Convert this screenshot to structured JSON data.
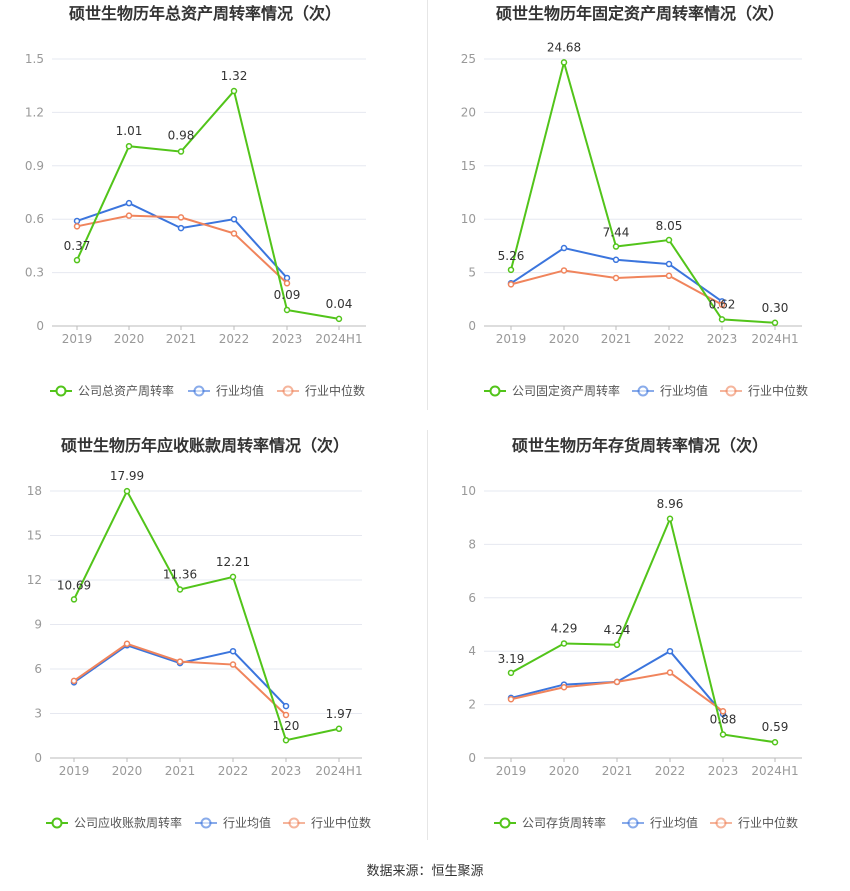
{
  "colors": {
    "company": "#52c41a",
    "industry_avg": "#3b75dd",
    "industry_median": "#f0845c",
    "grid": "#e6e8f0",
    "axis": "#999999",
    "title": "#333333"
  },
  "chart_data": [
    {
      "type": "line",
      "title": "硕世生物历年总资产周转率情况（次）",
      "categories": [
        "2019",
        "2020",
        "2021",
        "2022",
        "2023",
        "2024H1"
      ],
      "ylim": [
        0,
        1.5
      ],
      "yticks": [
        "0",
        "0.3",
        "0.6",
        "0.9",
        "1.2",
        "1.5"
      ],
      "series": [
        {
          "name": "公司总资产周转率",
          "values": [
            0.37,
            1.01,
            0.98,
            1.32,
            0.09,
            0.04
          ],
          "labels": [
            "0.37",
            "1.01",
            "0.98",
            "1.32",
            "0.09",
            "0.04"
          ]
        },
        {
          "name": "行业均值",
          "values": [
            0.59,
            0.69,
            0.55,
            0.6,
            0.27,
            null
          ]
        },
        {
          "name": "行业中位数",
          "values": [
            0.56,
            0.62,
            0.61,
            0.52,
            0.24,
            null
          ]
        }
      ]
    },
    {
      "type": "line",
      "title": "硕世生物历年固定资产周转率情况（次）",
      "categories": [
        "2019",
        "2020",
        "2021",
        "2022",
        "2023",
        "2024H1"
      ],
      "ylim": [
        0,
        25
      ],
      "yticks": [
        "0",
        "5",
        "10",
        "15",
        "20",
        "25"
      ],
      "series": [
        {
          "name": "公司固定资产周转率",
          "values": [
            5.26,
            24.68,
            7.44,
            8.05,
            0.62,
            0.3
          ],
          "labels": [
            "5.26",
            "24.68",
            "7.44",
            "8.05",
            "0.62",
            "0.30"
          ]
        },
        {
          "name": "行业均值",
          "values": [
            4.0,
            7.3,
            6.2,
            5.8,
            2.3,
            null
          ]
        },
        {
          "name": "行业中位数",
          "values": [
            3.9,
            5.2,
            4.5,
            4.7,
            2.0,
            null
          ]
        }
      ]
    },
    {
      "type": "line",
      "title": "硕世生物历年应收账款周转率情况（次）",
      "categories": [
        "2019",
        "2020",
        "2021",
        "2022",
        "2023",
        "2024H1"
      ],
      "ylim": [
        0,
        18
      ],
      "yticks": [
        "0",
        "3",
        "6",
        "9",
        "12",
        "15",
        "18"
      ],
      "series": [
        {
          "name": "公司应收账款周转率",
          "values": [
            10.69,
            17.99,
            11.36,
            12.21,
            1.2,
            1.97
          ],
          "labels": [
            "10.69",
            "17.99",
            "11.36",
            "12.21",
            "1.20",
            "1.97"
          ]
        },
        {
          "name": "行业均值",
          "values": [
            5.1,
            7.6,
            6.4,
            7.2,
            3.5,
            null
          ]
        },
        {
          "name": "行业中位数",
          "values": [
            5.2,
            7.7,
            6.5,
            6.3,
            2.9,
            null
          ]
        }
      ]
    },
    {
      "type": "line",
      "title": "硕世生物历年存货周转率情况（次）",
      "categories": [
        "2019",
        "2020",
        "2021",
        "2022",
        "2023",
        "2024H1"
      ],
      "ylim": [
        0,
        10
      ],
      "yticks": [
        "0",
        "2",
        "4",
        "6",
        "8",
        "10"
      ],
      "series": [
        {
          "name": "公司存货周转率",
          "values": [
            3.19,
            4.29,
            4.24,
            8.96,
            0.88,
            0.59
          ],
          "labels": [
            "3.19",
            "4.29",
            "4.24",
            "8.96",
            "0.88",
            "0.59"
          ]
        },
        {
          "name": "行业均值",
          "values": [
            2.25,
            2.75,
            2.85,
            4.0,
            1.65,
            null
          ]
        },
        {
          "name": "行业中位数",
          "values": [
            2.2,
            2.65,
            2.85,
            3.2,
            1.75,
            null
          ]
        }
      ]
    }
  ],
  "footer": {
    "source": "数据来源：恒生聚源"
  }
}
